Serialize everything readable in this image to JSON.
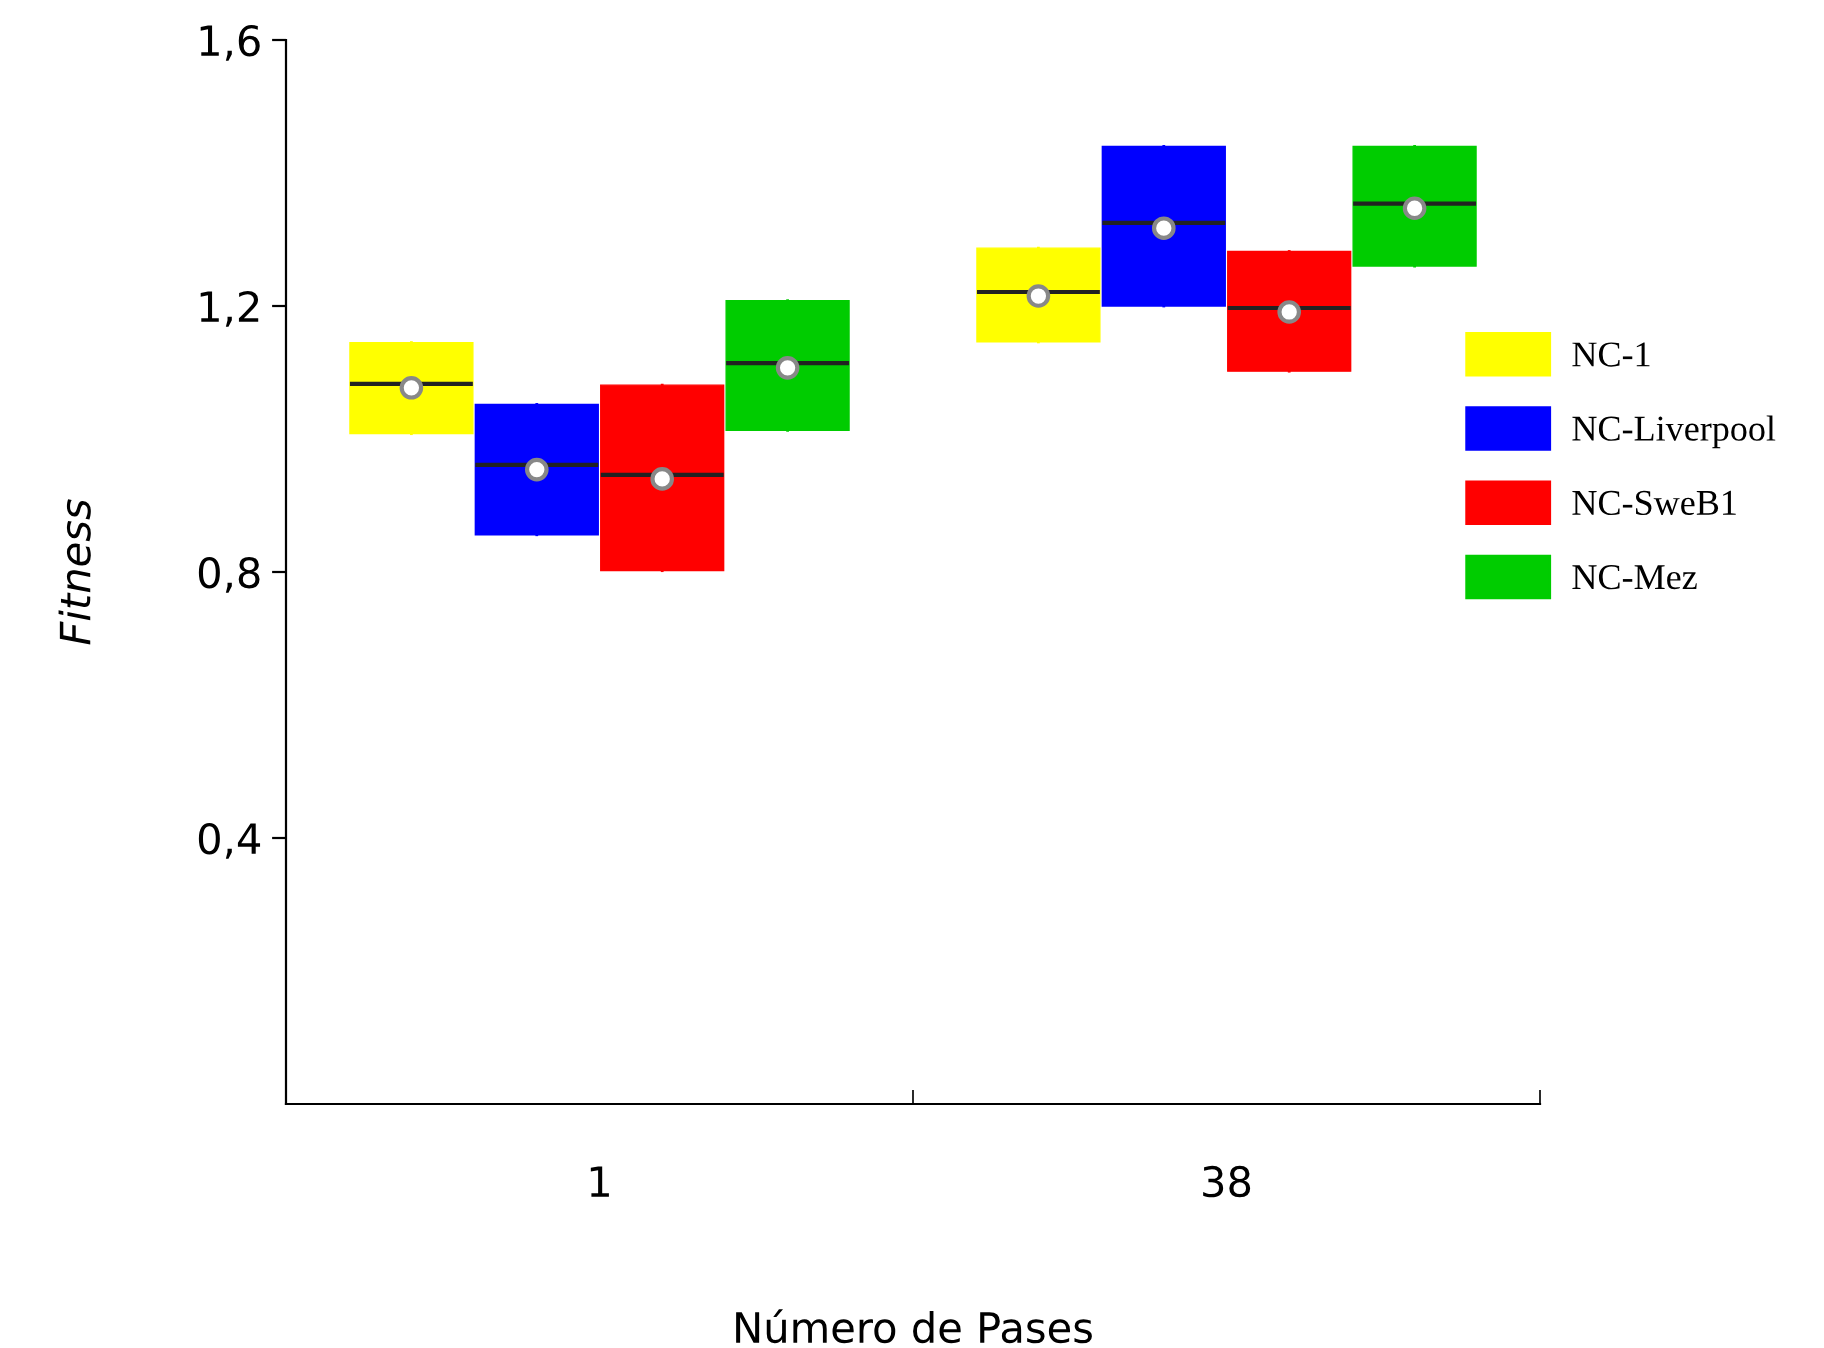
{
  "chart_data": {
    "type": "box",
    "xlabel": "Número de Pases",
    "ylabel": "Fitness",
    "categories": [
      "1",
      "38"
    ],
    "ylim": [
      0,
      1.6
    ],
    "yticks": [
      {
        "value": 0.4,
        "label": "0,4"
      },
      {
        "value": 0.8,
        "label": "0,8"
      },
      {
        "value": 1.2,
        "label": "1,2"
      },
      {
        "value": 1.6,
        "label": "1,6"
      }
    ],
    "grid": false,
    "legend": "right",
    "marker": "circle",
    "series": [
      {
        "name": "NC-1",
        "color": "#ffff00",
        "boxes": [
          {
            "low": 1.008,
            "q1": 1.008,
            "median": 1.083,
            "q3": 1.145,
            "high": 1.145,
            "mean": 1.077
          },
          {
            "low": 1.146,
            "q1": 1.146,
            "median": 1.221,
            "q3": 1.287,
            "high": 1.287,
            "mean": 1.215
          }
        ]
      },
      {
        "name": "NC-Liverpool",
        "color": "#0000ff",
        "boxes": [
          {
            "low": 0.856,
            "q1": 0.856,
            "median": 0.961,
            "q3": 1.052,
            "high": 1.052,
            "mean": 0.954
          },
          {
            "low": 1.2,
            "q1": 1.2,
            "median": 1.325,
            "q3": 1.44,
            "high": 1.44,
            "mean": 1.317
          }
        ]
      },
      {
        "name": "NC-SweB1",
        "color": "#ff0000",
        "boxes": [
          {
            "low": 0.802,
            "q1": 0.802,
            "median": 0.946,
            "q3": 1.081,
            "high": 1.081,
            "mean": 0.94
          },
          {
            "low": 1.102,
            "q1": 1.102,
            "median": 1.197,
            "q3": 1.282,
            "high": 1.282,
            "mean": 1.191
          }
        ]
      },
      {
        "name": "NC-Mez",
        "color": "#00cc00",
        "boxes": [
          {
            "low": 1.013,
            "q1": 1.013,
            "median": 1.114,
            "q3": 1.208,
            "high": 1.208,
            "mean": 1.107
          },
          {
            "low": 1.26,
            "q1": 1.26,
            "median": 1.354,
            "q3": 1.44,
            "high": 1.44,
            "mean": 1.347
          }
        ]
      }
    ]
  }
}
